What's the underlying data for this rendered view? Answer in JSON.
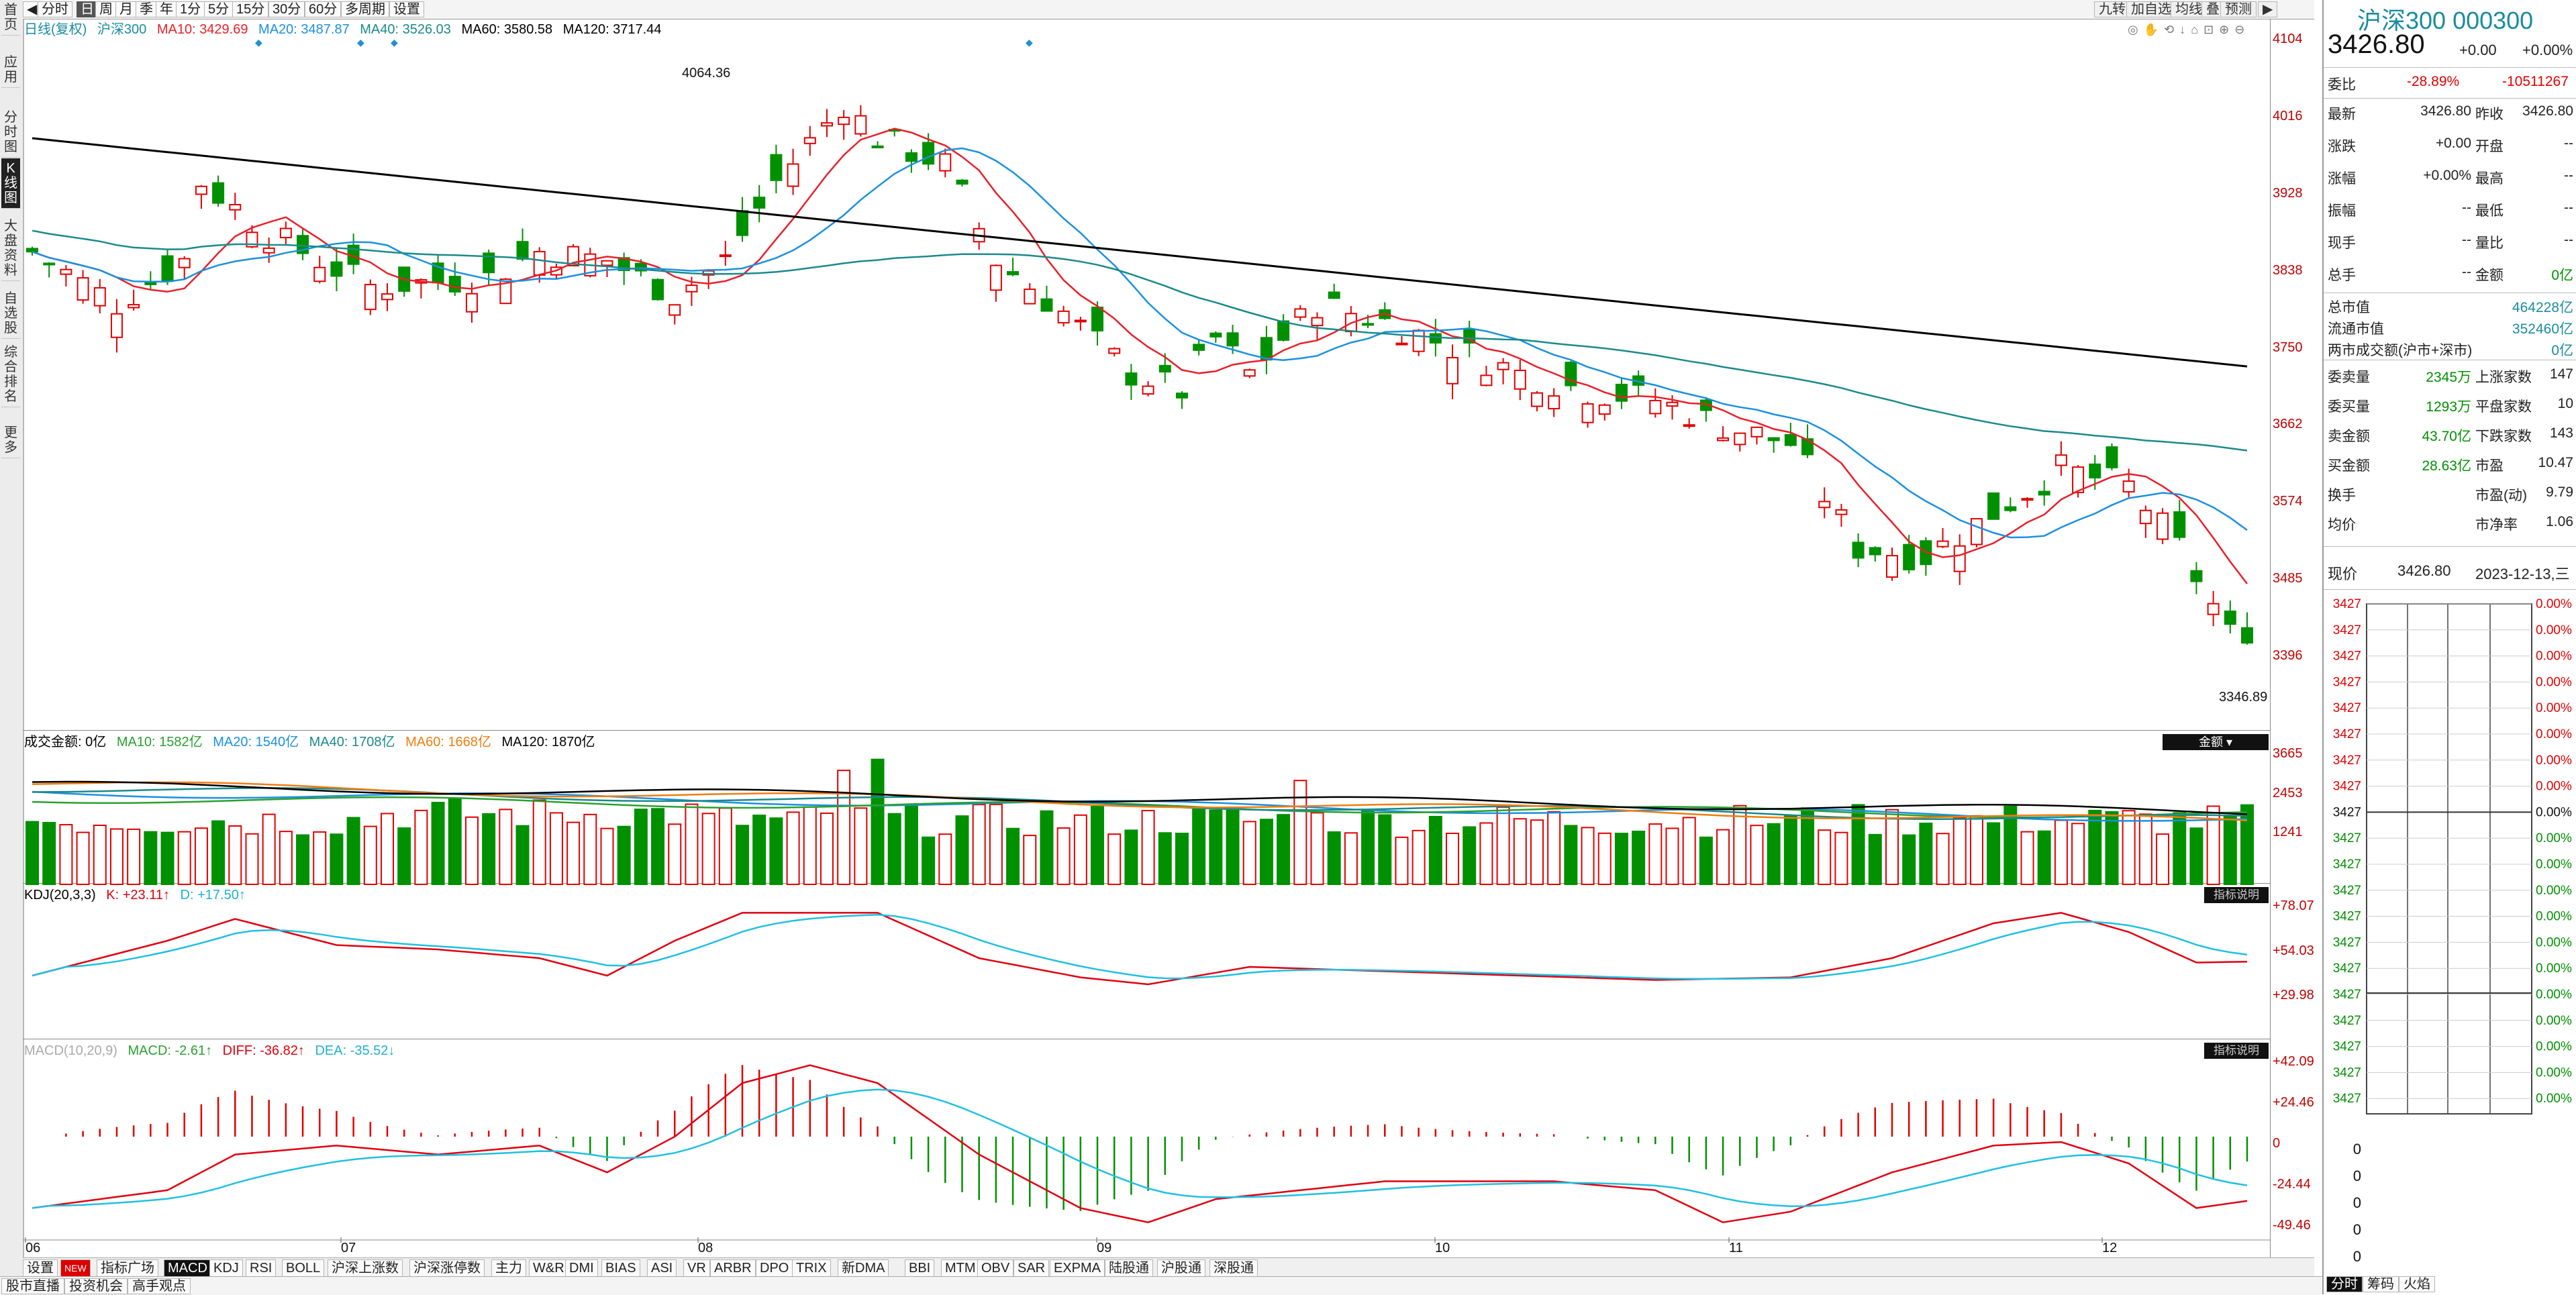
{
  "leftnav": [
    "首页",
    "应用",
    "分时图",
    "K线图",
    "大盘资料",
    "自选股",
    "综合排名",
    "更多"
  ],
  "toolbar": {
    "periods": [
      "分时",
      "日",
      "周",
      "月",
      "季",
      "年",
      "1分",
      "5分",
      "15分",
      "30分",
      "60分",
      "多周期",
      "设置"
    ],
    "active": "日",
    "right": [
      "九转",
      "加自选",
      "均线",
      "叠",
      "预测"
    ]
  },
  "main": {
    "legend": {
      "title": "日线(复权)",
      "name": "沪深300",
      "ma10": "MA10: 3429.69",
      "ma20": "MA20: 3487.87",
      "ma40": "MA40: 3526.03",
      "ma60": "MA60: 3580.58",
      "ma120": "MA120: 3717.44"
    },
    "price_axis": [
      "4104",
      "4016",
      "3928",
      "3838",
      "3750",
      "3662",
      "3574",
      "3485",
      "3396"
    ],
    "high_label": "4064.36",
    "low_label": "3346.89",
    "x_dates": [
      "06",
      "07",
      "08",
      "09",
      "10",
      "11",
      "12"
    ]
  },
  "volume": {
    "legend": {
      "name": "成交金额: 0亿",
      "ma10": "MA10: 1582亿",
      "ma20": "MA20: 1540亿",
      "ma40": "MA40: 1708亿",
      "ma60": "MA60: 1668亿",
      "ma120": "MA120: 1870亿"
    },
    "axis": [
      "3665",
      "2453",
      "1241"
    ],
    "button": "金额"
  },
  "kdj": {
    "legend": {
      "name": "KDJ(20,3,3)",
      "k": "K: +23.11↑",
      "d": "D: +17.50↑"
    },
    "axis": [
      "+78.07",
      "+54.03",
      "+29.98"
    ],
    "button": "指标说明"
  },
  "macd": {
    "legend": {
      "name": "MACD(10,20,9)",
      "macd": "MACD: -2.61↑",
      "diff": "DIFF: -36.82↑",
      "dea": "DEA: -35.52↓"
    },
    "axis": [
      "+42.09",
      "+24.46",
      "0",
      "-24.44",
      "-49.46"
    ],
    "button": "指标说明"
  },
  "bottomtabs": [
    "设置",
    "NEW",
    "指标广场",
    "MACD",
    "KDJ",
    "RSI",
    "BOLL",
    "沪深上涨数",
    "沪深涨停数",
    "主力",
    "W&R",
    "DMI",
    "BIAS",
    "ASI",
    "VR",
    "ARBR",
    "DPO",
    "TRIX",
    "新DMA",
    "BBI",
    "MTM",
    "OBV",
    "SAR",
    "EXPMA",
    "陆股通",
    "沪股通",
    "深股通"
  ],
  "bottomlinks": [
    "股市直播",
    "投资机会",
    "高手观点"
  ],
  "quote": {
    "title": "沪深300 000300",
    "price": "3426.80",
    "change": "+0.00",
    "pct": "+0.00%",
    "weibi_label": "委比",
    "weibi": "-28.89%",
    "weicha": "-10511267",
    "rows": [
      [
        "最新",
        "3426.80",
        "昨收",
        "3426.80"
      ],
      [
        "涨跌",
        "+0.00",
        "开盘",
        "--"
      ],
      [
        "涨幅",
        "+0.00%",
        "最高",
        "--"
      ],
      [
        "振幅",
        "--",
        "最低",
        "--"
      ],
      [
        "现手",
        "--",
        "量比",
        "--"
      ],
      [
        "总手",
        "--",
        "金额",
        "0亿"
      ]
    ],
    "cap_rows": [
      [
        "总市值",
        "464228亿"
      ],
      [
        "流通市值",
        "352460亿"
      ],
      [
        "两市成交额(沪市+深市)",
        "0亿"
      ]
    ],
    "order_rows": [
      [
        "委卖量",
        "2345万",
        "上涨家数",
        "147"
      ],
      [
        "委买量",
        "1293万",
        "平盘家数",
        "10"
      ],
      [
        "卖金额",
        "43.70亿",
        "下跌家数",
        "143"
      ],
      [
        "买金额",
        "28.63亿",
        "市盈",
        "10.47"
      ],
      [
        "换手",
        "",
        "市盈(动)",
        "9.79"
      ],
      [
        "均价",
        "",
        "市净率",
        "1.06"
      ]
    ],
    "now_label": "现价",
    "now_price": "3426.80",
    "now_date": "2023-12-13,三",
    "left_ticks": [
      "3427",
      "3427",
      "3427",
      "3427",
      "3427",
      "3427",
      "3427",
      "3427",
      "3427",
      "3427",
      "3427",
      "3427",
      "3427",
      "3427",
      "3427",
      "3427",
      "3427",
      "3427",
      "3427",
      "3427"
    ],
    "right_ticks": [
      "0.00%",
      "0.00%",
      "0.00%",
      "0.00%",
      "0.00%",
      "0.00%",
      "0.00%",
      "0.00%",
      "0.00%",
      "0.00%",
      "0.00%",
      "0.00%",
      "0.00%",
      "0.00%",
      "0.00%",
      "0.00%",
      "0.00%",
      "0.00%",
      "0.00%",
      "0.00%"
    ],
    "vol_ticks": [
      "0",
      "0",
      "0",
      "0",
      "0",
      "0"
    ],
    "tabs": [
      "分时",
      "筹码",
      "火焰"
    ]
  },
  "colors": {
    "up": "#e00000",
    "down": "#009000",
    "ma10": "#e8202a",
    "ma20": "#1a90e0",
    "ma40": "#1a8a8a",
    "ma120": "#000000",
    "ma60": "#f07d10",
    "k": "#e00010",
    "d": "#20c0e0"
  }
}
